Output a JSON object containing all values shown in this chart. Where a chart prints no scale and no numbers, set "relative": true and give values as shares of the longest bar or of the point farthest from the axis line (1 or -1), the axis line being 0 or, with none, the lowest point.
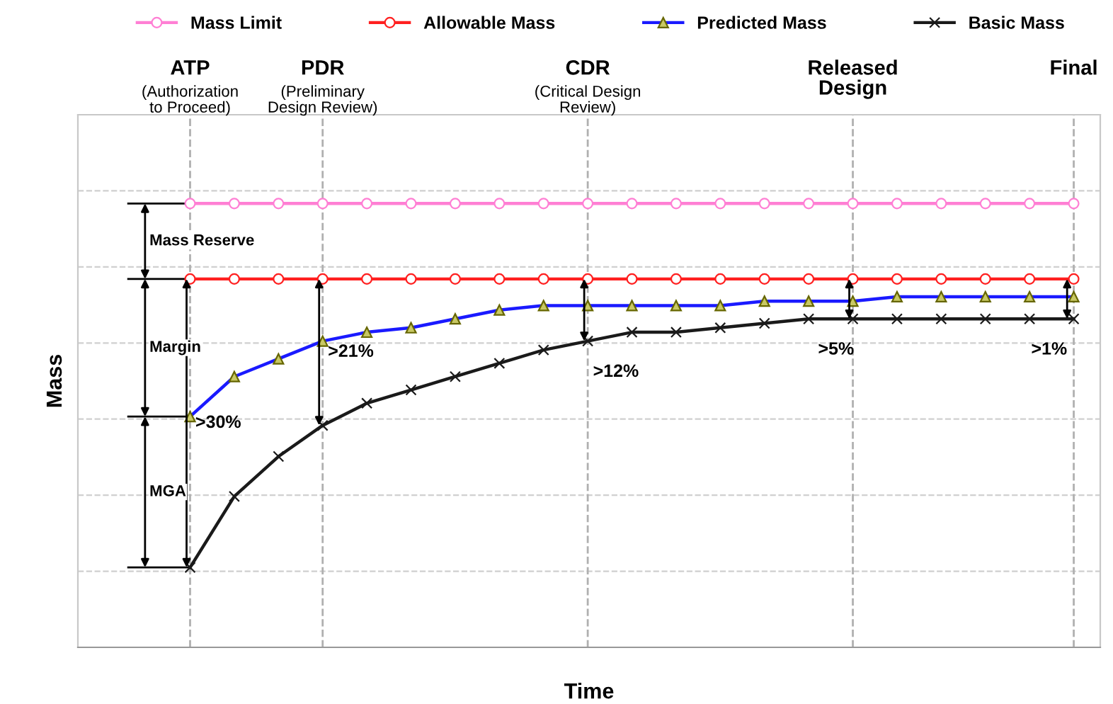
{
  "chart_data": {
    "type": "line",
    "relative": true,
    "xlabel": "Time",
    "ylabel": "Mass",
    "categories": [
      "ATP",
      null,
      null,
      "PDR",
      null,
      null,
      null,
      null,
      null,
      "CDR",
      null,
      null,
      null,
      null,
      null,
      "Released\nDesign",
      null,
      null,
      null,
      null,
      "Final"
    ],
    "series": [
      {
        "name": "Mass Limit",
        "color": "#ff7fd4",
        "marker": "circle",
        "values": [
          1.0,
          1.0,
          1.0,
          1.0,
          1.0,
          1.0,
          1.0,
          1.0,
          1.0,
          1.0,
          1.0,
          1.0,
          1.0,
          1.0,
          1.0,
          1.0,
          1.0,
          1.0,
          1.0,
          1.0,
          1.0
        ]
      },
      {
        "name": "Allowable Mass",
        "color": "#ff2020",
        "marker": "circle",
        "values": [
          0.83,
          0.83,
          0.83,
          0.83,
          0.83,
          0.83,
          0.83,
          0.83,
          0.83,
          0.83,
          0.83,
          0.83,
          0.83,
          0.83,
          0.83,
          0.83,
          0.83,
          0.83,
          0.83,
          0.83,
          0.83
        ]
      },
      {
        "name": "Predicted Mass",
        "color": "#1a1aff",
        "marker": "triangle",
        "values": [
          0.52,
          0.61,
          0.65,
          0.69,
          0.71,
          0.72,
          0.74,
          0.76,
          0.77,
          0.77,
          0.77,
          0.77,
          0.77,
          0.78,
          0.78,
          0.78,
          0.79,
          0.79,
          0.79,
          0.79,
          0.79
        ]
      },
      {
        "name": "Basic Mass",
        "color": "#1a1a1a",
        "marker": "cross",
        "values": [
          0.18,
          0.34,
          0.43,
          0.5,
          0.55,
          0.58,
          0.61,
          0.64,
          0.67,
          0.69,
          0.71,
          0.71,
          0.72,
          0.73,
          0.74,
          0.74,
          0.74,
          0.74,
          0.74,
          0.74,
          0.74
        ]
      }
    ],
    "ref_lines": [
      {
        "axis": "x",
        "value": "ATP",
        "label": "(Authorization\nto Proceed)",
        "color": "#b0b0b0",
        "line_style": "dashed"
      },
      {
        "axis": "x",
        "value": "PDR",
        "label": "(Preliminary\nDesign Review)",
        "color": "#b0b0b0",
        "line_style": "dashed"
      },
      {
        "axis": "x",
        "value": "CDR",
        "label": "(Critical Design\nReview)",
        "color": "#b0b0b0",
        "line_style": "dashed"
      },
      {
        "axis": "x",
        "value": "Released\nDesign",
        "color": "#b0b0b0",
        "line_style": "dashed"
      },
      {
        "axis": "x",
        "value": "Final",
        "color": "#b0b0b0",
        "line_style": "dashed"
      }
    ],
    "annotations": [
      "Mass Reserve",
      "Margin",
      "MGA",
      ">30%",
      ">21%",
      ">12%",
      ">5%",
      ">1%"
    ],
    "grid": "y",
    "legend": "top",
    "line_style": "solid"
  }
}
